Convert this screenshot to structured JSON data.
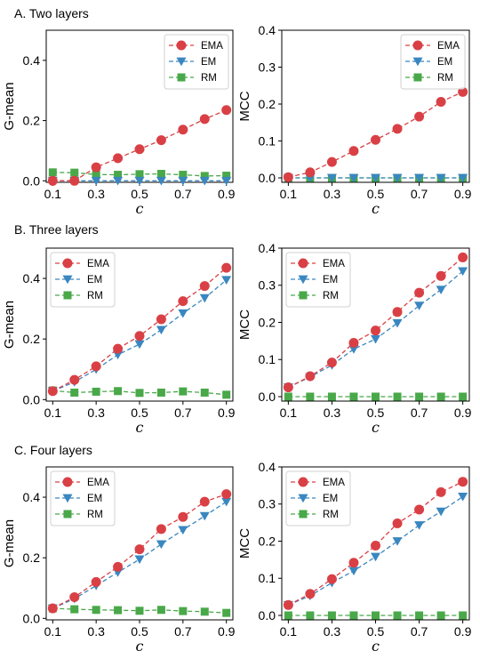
{
  "sections": [
    "A. Two layers",
    "B. Three layers",
    "C. Four layers"
  ],
  "colors": {
    "EMA": "#d94045",
    "EM": "#3a87c0",
    "RM": "#49a849"
  },
  "chart_data": [
    {
      "type": "line",
      "section": "A. Two layers",
      "x": [
        0.1,
        0.2,
        0.3,
        0.4,
        0.5,
        0.6,
        0.7,
        0.8,
        0.9
      ],
      "series": [
        {
          "name": "EMA",
          "marker": "circle",
          "values": [
            0.0,
            0.0,
            0.045,
            0.075,
            0.105,
            0.135,
            0.17,
            0.205,
            0.235
          ]
        },
        {
          "name": "EM",
          "marker": "triangle-down",
          "values": [
            0.0,
            0.0,
            0.0,
            0.0,
            0.0,
            0.0,
            0.0,
            0.0,
            0.0
          ]
        },
        {
          "name": "RM",
          "marker": "square",
          "values": [
            0.028,
            0.027,
            0.021,
            0.02,
            0.022,
            0.023,
            0.02,
            0.016,
            0.017
          ]
        }
      ],
      "xlabel": "c",
      "ylabel": "G-mean",
      "xlim": [
        0.07,
        0.93
      ],
      "ylim": [
        -0.005,
        0.5
      ],
      "xticks": [
        "0.1",
        "0.3",
        "0.5",
        "0.7",
        "0.9"
      ],
      "yticks": [
        "0.0",
        "0.2",
        "0.4"
      ],
      "legend": "top-right"
    },
    {
      "type": "line",
      "section": "A. Two layers",
      "x": [
        0.1,
        0.2,
        0.3,
        0.4,
        0.5,
        0.6,
        0.7,
        0.8,
        0.9
      ],
      "series": [
        {
          "name": "EMA",
          "marker": "circle",
          "values": [
            0.002,
            0.015,
            0.043,
            0.073,
            0.103,
            0.133,
            0.166,
            0.206,
            0.233
          ]
        },
        {
          "name": "EM",
          "marker": "triangle-down",
          "values": [
            0.0,
            0.0,
            0.0,
            0.0,
            0.0,
            0.0,
            0.0,
            0.0,
            0.0
          ]
        },
        {
          "name": "RM",
          "marker": "square",
          "values": [
            0.0,
            0.0,
            0.0,
            0.0,
            0.0,
            0.0,
            0.0,
            0.0,
            0.0
          ]
        }
      ],
      "xlabel": "c",
      "ylabel": "MCC",
      "xlim": [
        0.07,
        0.93
      ],
      "ylim": [
        -0.012,
        0.4
      ],
      "xticks": [
        "0.1",
        "0.3",
        "0.5",
        "0.7",
        "0.9"
      ],
      "yticks": [
        "0.0",
        "0.1",
        "0.2",
        "0.3",
        "0.4"
      ],
      "legend": "top-right"
    },
    {
      "type": "line",
      "section": "B. Three layers",
      "x": [
        0.1,
        0.2,
        0.3,
        0.4,
        0.5,
        0.6,
        0.7,
        0.8,
        0.9
      ],
      "series": [
        {
          "name": "EMA",
          "marker": "circle",
          "values": [
            0.028,
            0.065,
            0.11,
            0.168,
            0.21,
            0.265,
            0.325,
            0.375,
            0.435
          ]
        },
        {
          "name": "EM",
          "marker": "triangle-down",
          "values": [
            0.028,
            0.058,
            0.1,
            0.148,
            0.183,
            0.23,
            0.285,
            0.335,
            0.395
          ]
        },
        {
          "name": "RM",
          "marker": "square",
          "values": [
            0.03,
            0.023,
            0.026,
            0.028,
            0.022,
            0.023,
            0.027,
            0.023,
            0.016
          ]
        }
      ],
      "xlabel": "c",
      "ylabel": "G-mean",
      "xlim": [
        0.07,
        0.93
      ],
      "ylim": [
        -0.005,
        0.5
      ],
      "xticks": [
        "0.1",
        "0.3",
        "0.5",
        "0.7",
        "0.9"
      ],
      "yticks": [
        "0.0",
        "0.2",
        "0.4"
      ],
      "legend": "top-left"
    },
    {
      "type": "line",
      "section": "B. Three layers",
      "x": [
        0.1,
        0.2,
        0.3,
        0.4,
        0.5,
        0.6,
        0.7,
        0.8,
        0.9
      ],
      "series": [
        {
          "name": "EMA",
          "marker": "circle",
          "values": [
            0.025,
            0.055,
            0.092,
            0.145,
            0.178,
            0.228,
            0.28,
            0.325,
            0.375
          ]
        },
        {
          "name": "EM",
          "marker": "triangle-down",
          "values": [
            0.025,
            0.053,
            0.085,
            0.128,
            0.155,
            0.198,
            0.245,
            0.288,
            0.338
          ]
        },
        {
          "name": "RM",
          "marker": "square",
          "values": [
            0.0,
            0.0,
            0.0,
            0.0,
            0.0,
            0.0,
            0.0,
            0.0,
            0.0
          ]
        }
      ],
      "xlabel": "c",
      "ylabel": "MCC",
      "xlim": [
        0.07,
        0.93
      ],
      "ylim": [
        -0.012,
        0.4
      ],
      "xticks": [
        "0.1",
        "0.3",
        "0.5",
        "0.7",
        "0.9"
      ],
      "yticks": [
        "0.0",
        "0.1",
        "0.2",
        "0.3",
        "0.4"
      ],
      "legend": "top-left"
    },
    {
      "type": "line",
      "section": "C. Four layers",
      "x": [
        0.1,
        0.2,
        0.3,
        0.4,
        0.5,
        0.6,
        0.7,
        0.8,
        0.9
      ],
      "series": [
        {
          "name": "EMA",
          "marker": "circle",
          "values": [
            0.033,
            0.07,
            0.12,
            0.17,
            0.228,
            0.295,
            0.335,
            0.385,
            0.41
          ]
        },
        {
          "name": "EM",
          "marker": "triangle-down",
          "values": [
            0.033,
            0.065,
            0.108,
            0.152,
            0.195,
            0.245,
            0.292,
            0.338,
            0.385
          ]
        },
        {
          "name": "RM",
          "marker": "square",
          "values": [
            0.033,
            0.03,
            0.028,
            0.027,
            0.025,
            0.028,
            0.024,
            0.022,
            0.018
          ]
        }
      ],
      "xlabel": "c",
      "ylabel": "G-mean",
      "xlim": [
        0.07,
        0.93
      ],
      "ylim": [
        -0.005,
        0.5
      ],
      "xticks": [
        "0.1",
        "0.3",
        "0.5",
        "0.7",
        "0.9"
      ],
      "yticks": [
        "0.0",
        "0.2",
        "0.4"
      ],
      "legend": "top-left"
    },
    {
      "type": "line",
      "section": "C. Four layers",
      "x": [
        0.1,
        0.2,
        0.3,
        0.4,
        0.5,
        0.6,
        0.7,
        0.8,
        0.9
      ],
      "series": [
        {
          "name": "EMA",
          "marker": "circle",
          "values": [
            0.028,
            0.058,
            0.098,
            0.142,
            0.188,
            0.248,
            0.285,
            0.332,
            0.36
          ]
        },
        {
          "name": "EM",
          "marker": "triangle-down",
          "values": [
            0.028,
            0.053,
            0.088,
            0.12,
            0.158,
            0.2,
            0.243,
            0.28,
            0.32
          ]
        },
        {
          "name": "RM",
          "marker": "square",
          "values": [
            0.0,
            0.0,
            0.0,
            0.0,
            0.0,
            0.0,
            0.0,
            0.0,
            0.0
          ]
        }
      ],
      "xlabel": "c",
      "ylabel": "MCC",
      "xlim": [
        0.07,
        0.93
      ],
      "ylim": [
        -0.012,
        0.4
      ],
      "xticks": [
        "0.1",
        "0.3",
        "0.5",
        "0.7",
        "0.9"
      ],
      "yticks": [
        "0.0",
        "0.1",
        "0.2",
        "0.3",
        "0.4"
      ],
      "legend": "top-left"
    }
  ]
}
